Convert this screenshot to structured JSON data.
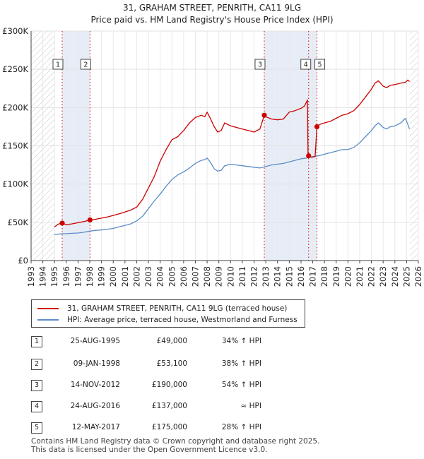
{
  "chart_data": {
    "type": "line",
    "title": "31, GRAHAM STREET, PENRITH, CA11 9LG",
    "subtitle": "Price paid vs. HM Land Registry's House Price Index (HPI)",
    "xlim": [
      1993,
      2026
    ],
    "ylim": [
      0,
      300000
    ],
    "x_ticks": [
      1993,
      1994,
      1995,
      1996,
      1997,
      1998,
      1999,
      2000,
      2001,
      2002,
      2003,
      2004,
      2005,
      2006,
      2007,
      2008,
      2009,
      2010,
      2011,
      2012,
      2013,
      2014,
      2015,
      2016,
      2017,
      2018,
      2019,
      2020,
      2021,
      2022,
      2023,
      2024,
      2025,
      2026
    ],
    "y_ticks": [
      {
        "value": 0,
        "label": "£0"
      },
      {
        "value": 50000,
        "label": "£50K"
      },
      {
        "value": 100000,
        "label": "£100K"
      },
      {
        "value": 150000,
        "label": "£150K"
      },
      {
        "value": 200000,
        "label": "£200K"
      },
      {
        "value": 250000,
        "label": "£250K"
      },
      {
        "value": 300000,
        "label": "£300K"
      }
    ],
    "hatched_ranges": [
      [
        1993,
        1995.0
      ],
      [
        2025.25,
        2026
      ]
    ],
    "sale_bands": [
      [
        1995.65,
        1998.02
      ],
      [
        2012.87,
        2017.36
      ]
    ],
    "series": [
      {
        "name": "31, GRAHAM STREET, PENRITH, CA11 9LG (terraced house)",
        "color": "#cc0000",
        "x": [
          1995.0,
          1995.3,
          1995.65,
          1996.0,
          1996.5,
          1997.0,
          1997.5,
          1998.02,
          1998.5,
          1999.0,
          1999.5,
          2000.0,
          2000.5,
          2001.0,
          2001.5,
          2002.0,
          2002.5,
          2003.0,
          2003.5,
          2004.0,
          2004.5,
          2005.0,
          2005.5,
          2006.0,
          2006.5,
          2007.0,
          2007.5,
          2007.8,
          2008.0,
          2008.3,
          2008.6,
          2008.9,
          2009.2,
          2009.5,
          2010.0,
          2010.5,
          2011.0,
          2011.5,
          2012.0,
          2012.5,
          2012.87,
          2013.0,
          2013.5,
          2014.0,
          2014.5,
          2015.0,
          2015.5,
          2016.0,
          2016.3,
          2016.55,
          2016.6,
          2016.65,
          2016.9,
          2017.2,
          2017.36,
          2017.6,
          2018.0,
          2018.5,
          2019.0,
          2019.5,
          2020.0,
          2020.5,
          2021.0,
          2021.5,
          2022.0,
          2022.3,
          2022.6,
          2023.0,
          2023.3,
          2023.6,
          2024.0,
          2024.5,
          2024.9,
          2025.1,
          2025.25
        ],
        "values": [
          44000,
          47500,
          49000,
          47000,
          48000,
          49500,
          51000,
          53100,
          54000,
          55500,
          57000,
          59000,
          61000,
          63500,
          66000,
          70000,
          80000,
          95000,
          110000,
          130000,
          145000,
          158000,
          162000,
          170000,
          180000,
          187000,
          190000,
          188000,
          194000,
          185000,
          175000,
          168000,
          170000,
          180000,
          176000,
          174000,
          172000,
          170000,
          168000,
          172000,
          190000,
          188000,
          185000,
          184000,
          185000,
          194000,
          196000,
          199000,
          202000,
          210000,
          137000,
          137000,
          135000,
          136000,
          175000,
          178000,
          180000,
          182000,
          186000,
          190000,
          192000,
          196000,
          204000,
          214000,
          224000,
          232000,
          235000,
          228000,
          226000,
          229000,
          230000,
          232000,
          233000,
          236000,
          234000
        ]
      },
      {
        "name": "HPI: Average price, terraced house, Westmorland and Furness",
        "color": "#5b8cc8",
        "x": [
          1995.0,
          1995.5,
          1996.0,
          1996.5,
          1997.0,
          1997.5,
          1998.0,
          1998.5,
          1999.0,
          1999.5,
          2000.0,
          2000.5,
          2001.0,
          2001.5,
          2002.0,
          2002.5,
          2003.0,
          2003.5,
          2004.0,
          2004.5,
          2005.0,
          2005.5,
          2006.0,
          2006.5,
          2007.0,
          2007.5,
          2007.8,
          2008.0,
          2008.3,
          2008.6,
          2008.9,
          2009.2,
          2009.5,
          2010.0,
          2010.5,
          2011.0,
          2011.5,
          2012.0,
          2012.5,
          2013.0,
          2013.5,
          2014.0,
          2014.5,
          2015.0,
          2015.5,
          2016.0,
          2016.5,
          2017.0,
          2017.5,
          2018.0,
          2018.5,
          2019.0,
          2019.5,
          2020.0,
          2020.5,
          2021.0,
          2021.5,
          2022.0,
          2022.3,
          2022.6,
          2023.0,
          2023.3,
          2023.6,
          2024.0,
          2024.5,
          2024.9,
          2025.1,
          2025.25
        ],
        "values": [
          34000,
          35000,
          35200,
          35600,
          36000,
          37000,
          38500,
          39500,
          40000,
          41000,
          42000,
          44000,
          46000,
          48000,
          52000,
          58000,
          68000,
          78000,
          87000,
          97000,
          106000,
          112000,
          116000,
          121000,
          127000,
          131000,
          132000,
          134000,
          128000,
          120000,
          117000,
          118000,
          124000,
          126000,
          125000,
          124000,
          123000,
          122000,
          121000,
          123000,
          125000,
          126000,
          127000,
          129000,
          131000,
          133000,
          134000,
          136000,
          137000,
          139000,
          141000,
          143000,
          145000,
          145000,
          148000,
          154000,
          162000,
          170000,
          176000,
          180000,
          174000,
          172000,
          175000,
          176000,
          180000,
          186000,
          178000,
          172000
        ]
      }
    ],
    "sales": [
      {
        "label": "1",
        "date": "25-AUG-1995",
        "x": 1995.65,
        "price_value": 49000,
        "price": "£49,000",
        "hpi": "34% ↑ HPI"
      },
      {
        "label": "2",
        "date": "09-JAN-1998",
        "x": 1998.02,
        "price_value": 53100,
        "price": "£53,100",
        "hpi": "38% ↑ HPI"
      },
      {
        "label": "3",
        "date": "14-NOV-2012",
        "x": 2012.87,
        "price_value": 190000,
        "price": "£190,000",
        "hpi": "54% ↑ HPI"
      },
      {
        "label": "4",
        "date": "24-AUG-2016",
        "x": 2016.65,
        "price_value": 137000,
        "price": "£137,000",
        "hpi": "≈ HPI"
      },
      {
        "label": "5",
        "date": "12-MAY-2017",
        "x": 2017.36,
        "price_value": 175000,
        "price": "£175,000",
        "hpi": "28% ↑ HPI"
      }
    ]
  },
  "header": {
    "title": "31, GRAHAM STREET, PENRITH, CA11 9LG",
    "subtitle": "Price paid vs. HM Land Registry's House Price Index (HPI)"
  },
  "legend": {
    "property_label": "31, GRAHAM STREET, PENRITH, CA11 9LG (terraced house)",
    "hpi_label": "HPI: Average price, terraced house, Westmorland and Furness",
    "property_color": "#cc0000",
    "hpi_color": "#5b8cc8"
  },
  "footer": {
    "line1": "Contains HM Land Registry data © Crown copyright and database right 2025.",
    "line2": "This data is licensed under the Open Government Licence v3.0."
  }
}
